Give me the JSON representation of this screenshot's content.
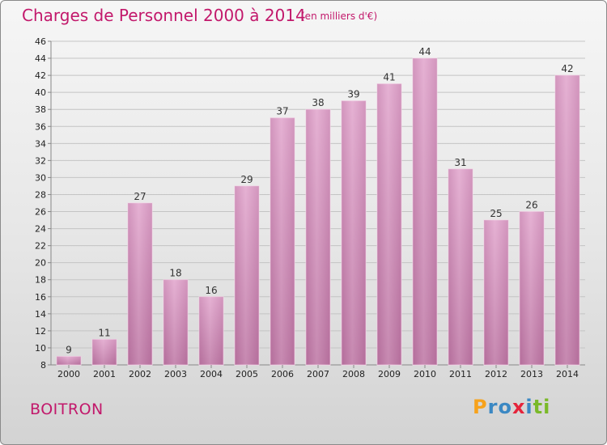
{
  "chart_data": {
    "type": "bar",
    "title": "Charges de Personnel 2000 à 2014",
    "subtitle": "(en milliers d'€)",
    "categories": [
      "2000",
      "2001",
      "2002",
      "2003",
      "2004",
      "2005",
      "2006",
      "2007",
      "2008",
      "2009",
      "2010",
      "2011",
      "2012",
      "2013",
      "2014"
    ],
    "values": [
      9,
      11,
      27,
      18,
      16,
      29,
      37,
      38,
      39,
      41,
      44,
      31,
      25,
      26,
      42
    ],
    "ylim": [
      8,
      46
    ],
    "yticks": [
      8,
      10,
      12,
      14,
      16,
      18,
      20,
      22,
      24,
      26,
      28,
      30,
      32,
      34,
      36,
      38,
      40,
      42,
      44,
      46
    ],
    "grid": true,
    "bar_color": "#b8709f",
    "bar_color_light": "#e2aed0"
  },
  "location_label": "BOITRON",
  "logo": {
    "letters": [
      "P",
      "r",
      "o",
      "x",
      "i",
      "t",
      "i"
    ],
    "colors": [
      "#f7a21b",
      "#3b88c3",
      "#3b88c3",
      "#e5243b",
      "#3b88c3",
      "#7ab929",
      "#7ab929"
    ]
  }
}
